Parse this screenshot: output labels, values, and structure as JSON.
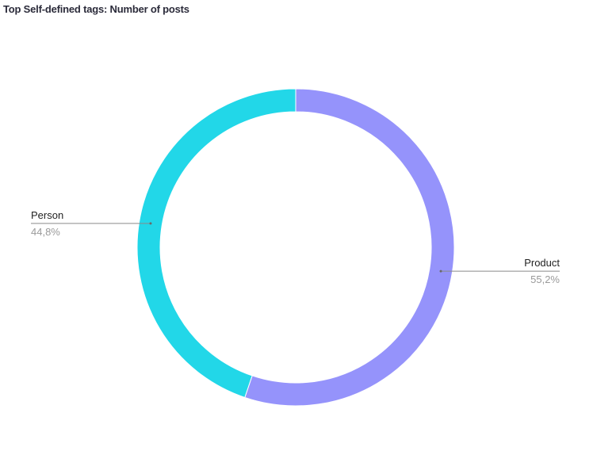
{
  "chart_data": {
    "type": "pie",
    "title": "Top Self-defined tags: Number of posts",
    "donut": true,
    "slices": [
      {
        "name": "Product",
        "value": 55.2,
        "label": "55,2%",
        "color": "#9593fb"
      },
      {
        "name": "Person",
        "value": 44.8,
        "label": "44,8%",
        "color": "#22d7e8"
      }
    ],
    "legend": "none (slice labels with leader lines)"
  }
}
